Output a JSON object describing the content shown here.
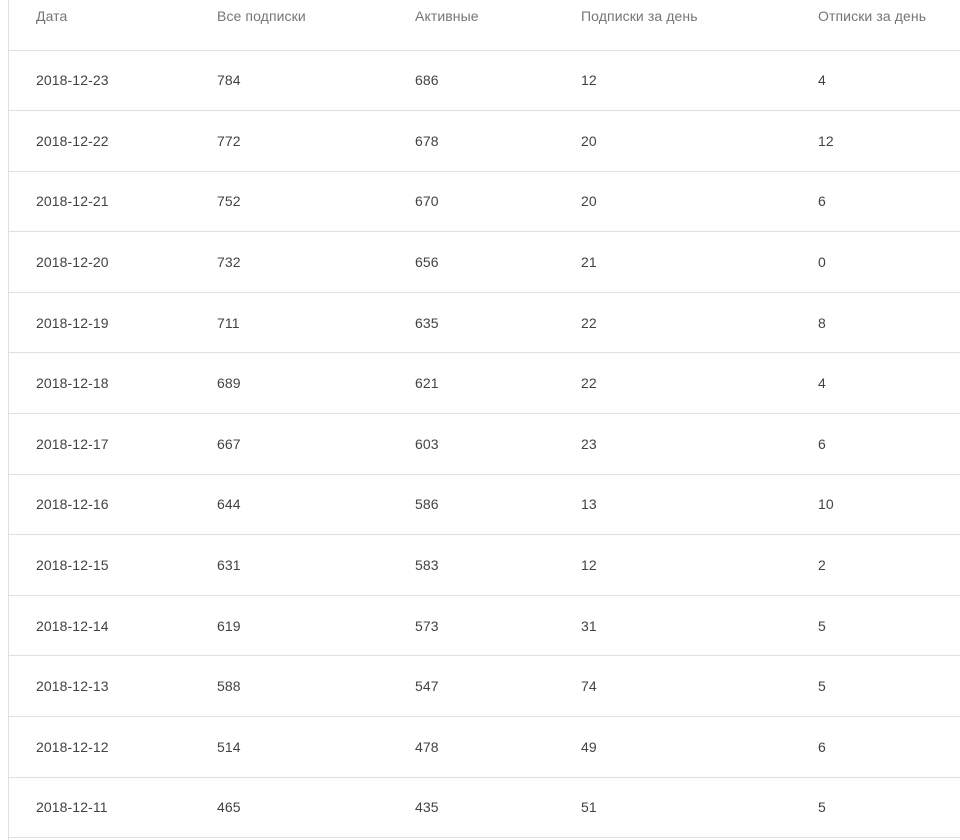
{
  "table": {
    "columns": [
      "Дата",
      "Все подписки",
      "Активные",
      "Подписки за день",
      "Отписки за день"
    ],
    "rows": [
      [
        "2018-12-23",
        "784",
        "686",
        "12",
        "4"
      ],
      [
        "2018-12-22",
        "772",
        "678",
        "20",
        "12"
      ],
      [
        "2018-12-21",
        "752",
        "670",
        "20",
        "6"
      ],
      [
        "2018-12-20",
        "732",
        "656",
        "21",
        "0"
      ],
      [
        "2018-12-19",
        "711",
        "635",
        "22",
        "8"
      ],
      [
        "2018-12-18",
        "689",
        "621",
        "22",
        "4"
      ],
      [
        "2018-12-17",
        "667",
        "603",
        "23",
        "6"
      ],
      [
        "2018-12-16",
        "644",
        "586",
        "13",
        "10"
      ],
      [
        "2018-12-15",
        "631",
        "583",
        "12",
        "2"
      ],
      [
        "2018-12-14",
        "619",
        "573",
        "31",
        "5"
      ],
      [
        "2018-12-13",
        "588",
        "547",
        "74",
        "5"
      ],
      [
        "2018-12-12",
        "514",
        "478",
        "49",
        "6"
      ],
      [
        "2018-12-11",
        "465",
        "435",
        "51",
        "5"
      ]
    ]
  },
  "colors": {
    "background": "#ffffff",
    "header_text": "#757575",
    "cell_text": "#424242",
    "divider": "#e0e0e0"
  }
}
